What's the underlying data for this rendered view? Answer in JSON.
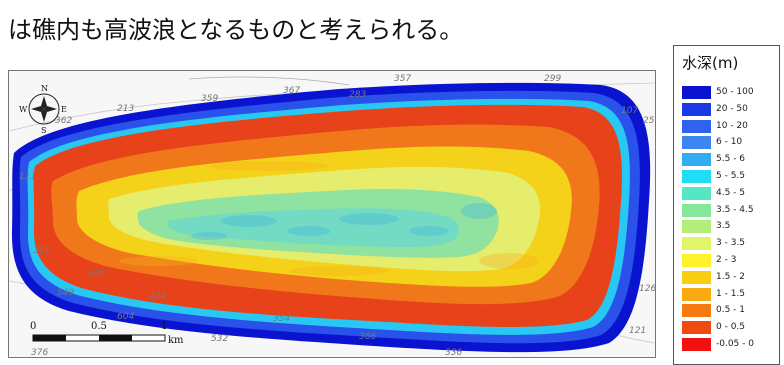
{
  "caption": "は礁内も高波浪となるものと考えられる。",
  "legend": {
    "title": "水深(m)",
    "items": [
      {
        "label": "50 - 100",
        "color": "#0a14d0"
      },
      {
        "label": "20 - 50",
        "color": "#1a3ae6"
      },
      {
        "label": "10 - 20",
        "color": "#2f62ee"
      },
      {
        "label": "6 - 10",
        "color": "#3b86f0"
      },
      {
        "label": "5.5 - 6",
        "color": "#32acf2"
      },
      {
        "label": "5 - 5.5",
        "color": "#22dcf5"
      },
      {
        "label": "4.5 - 5",
        "color": "#55e6c2"
      },
      {
        "label": "3.5 - 4.5",
        "color": "#86e69a"
      },
      {
        "label": "3.5",
        "color": "#b4ee7a"
      },
      {
        "label": "3 - 3.5",
        "color": "#e0f56a"
      },
      {
        "label": "2 - 3",
        "color": "#fff22a"
      },
      {
        "label": "1.5 - 2",
        "color": "#f8cf10"
      },
      {
        "label": "1 - 1.5",
        "color": "#f8aa10"
      },
      {
        "label": "0.5 - 1",
        "color": "#f57a10"
      },
      {
        "label": "0 - 0.5",
        "color": "#ef4a10"
      },
      {
        "label": "-0.05 - 0",
        "color": "#f21010"
      }
    ]
  },
  "map": {
    "compass": {
      "n": "N",
      "e": "E",
      "s": "S",
      "w": "W"
    },
    "sounding_labels": [
      "213",
      "359",
      "367",
      "357",
      "283",
      "299",
      "107",
      "25",
      "111",
      "362",
      "381",
      "420",
      "549",
      "474",
      "604",
      "354",
      "532",
      "366",
      "336",
      "126",
      "121",
      "376"
    ],
    "scale": {
      "zero": "0",
      "mid": "0.5",
      "end": "1",
      "unit": "km"
    }
  }
}
